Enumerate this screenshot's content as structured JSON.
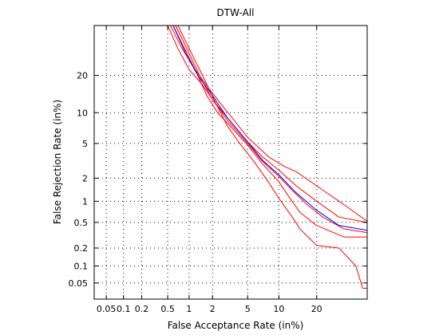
{
  "chart_data": {
    "type": "line",
    "title": "DTW-All",
    "xlabel": "False Acceptance Rate (in%)",
    "ylabel": "False Rejection Rate (in%)",
    "x_scale": "normal-deviate",
    "y_scale": "normal-deviate",
    "xlim": [
      0.03,
      40
    ],
    "ylim": [
      0.025,
      40
    ],
    "x_ticks": [
      0.05,
      0.1,
      0.2,
      0.5,
      1,
      2,
      5,
      10,
      20
    ],
    "x_tick_labels": [
      "0.05",
      "0.1",
      "0.2",
      "0.5",
      "1",
      "2",
      "5",
      "10",
      "20"
    ],
    "y_ticks": [
      0.05,
      0.1,
      0.2,
      0.5,
      1,
      2,
      5,
      10,
      20
    ],
    "y_tick_labels": [
      "0.05",
      "0.1",
      "0.2",
      "0.5",
      "1",
      "2",
      "5",
      "10",
      "20"
    ],
    "grid": true,
    "colors": {
      "individual": "#ff0000",
      "average": "#0000ff"
    },
    "series": [
      {
        "color": "#ff0000",
        "points": [
          [
            0.5,
            40
          ],
          [
            0.7,
            30
          ],
          [
            1,
            22
          ],
          [
            1.5,
            17
          ],
          [
            2,
            13
          ],
          [
            3,
            9
          ],
          [
            5,
            5.2
          ],
          [
            7,
            3.6
          ],
          [
            10,
            2.5
          ],
          [
            14,
            1.6
          ],
          [
            20,
            1.0
          ],
          [
            28,
            0.6
          ],
          [
            40,
            0.5
          ]
        ]
      },
      {
        "color": "#ff0000",
        "points": [
          [
            0.55,
            40
          ],
          [
            0.8,
            30
          ],
          [
            1.2,
            22
          ],
          [
            1.8,
            16
          ],
          [
            2.3,
            13
          ],
          [
            3.2,
            9.5
          ],
          [
            5,
            5.8
          ],
          [
            8,
            3.6
          ],
          [
            11,
            2.8
          ],
          [
            14,
            2.4
          ],
          [
            20,
            1.6
          ],
          [
            30,
            0.9
          ],
          [
            40,
            0.52
          ]
        ]
      },
      {
        "color": "#ff0000",
        "points": [
          [
            0.6,
            40
          ],
          [
            0.8,
            32
          ],
          [
            1.2,
            22
          ],
          [
            1.7,
            14
          ],
          [
            2.3,
            10
          ],
          [
            3,
            8
          ],
          [
            5,
            4.8
          ],
          [
            7,
            3
          ],
          [
            10,
            1.8
          ],
          [
            12,
            1.2
          ],
          [
            15,
            0.7
          ],
          [
            20,
            0.45
          ],
          [
            30,
            0.3
          ],
          [
            40,
            0.3
          ]
        ]
      },
      {
        "color": "#ff0000",
        "points": [
          [
            0.65,
            40
          ],
          [
            1,
            28
          ],
          [
            1.5,
            18
          ],
          [
            2,
            13
          ],
          [
            3,
            8.5
          ],
          [
            5,
            5
          ],
          [
            7,
            3.2
          ],
          [
            10,
            2.1
          ],
          [
            13,
            1.4
          ],
          [
            17,
            0.9
          ],
          [
            22,
            0.6
          ],
          [
            30,
            0.4
          ],
          [
            40,
            0.35
          ]
        ]
      },
      {
        "color": "#ff0000",
        "points": [
          [
            0.7,
            40
          ],
          [
            1,
            30
          ],
          [
            1.5,
            20
          ],
          [
            2.2,
            12
          ],
          [
            3,
            7.5
          ],
          [
            4,
            5.2
          ],
          [
            6,
            3
          ],
          [
            8,
            1.8
          ],
          [
            10,
            1.1
          ],
          [
            13,
            0.6
          ],
          [
            15,
            0.4
          ],
          [
            20,
            0.22
          ],
          [
            28,
            0.2
          ],
          [
            35,
            0.1
          ],
          [
            38,
            0.04
          ],
          [
            40,
            0.04
          ]
        ]
      },
      {
        "color": "#0000ff",
        "points": [
          [
            0.6,
            40
          ],
          [
            0.9,
            28
          ],
          [
            1.3,
            20
          ],
          [
            2,
            14
          ],
          [
            3,
            9
          ],
          [
            5,
            5.2
          ],
          [
            7,
            3.3
          ],
          [
            10,
            2.2
          ],
          [
            14,
            1.3
          ],
          [
            20,
            0.75
          ],
          [
            28,
            0.45
          ],
          [
            40,
            0.38
          ]
        ]
      }
    ]
  }
}
